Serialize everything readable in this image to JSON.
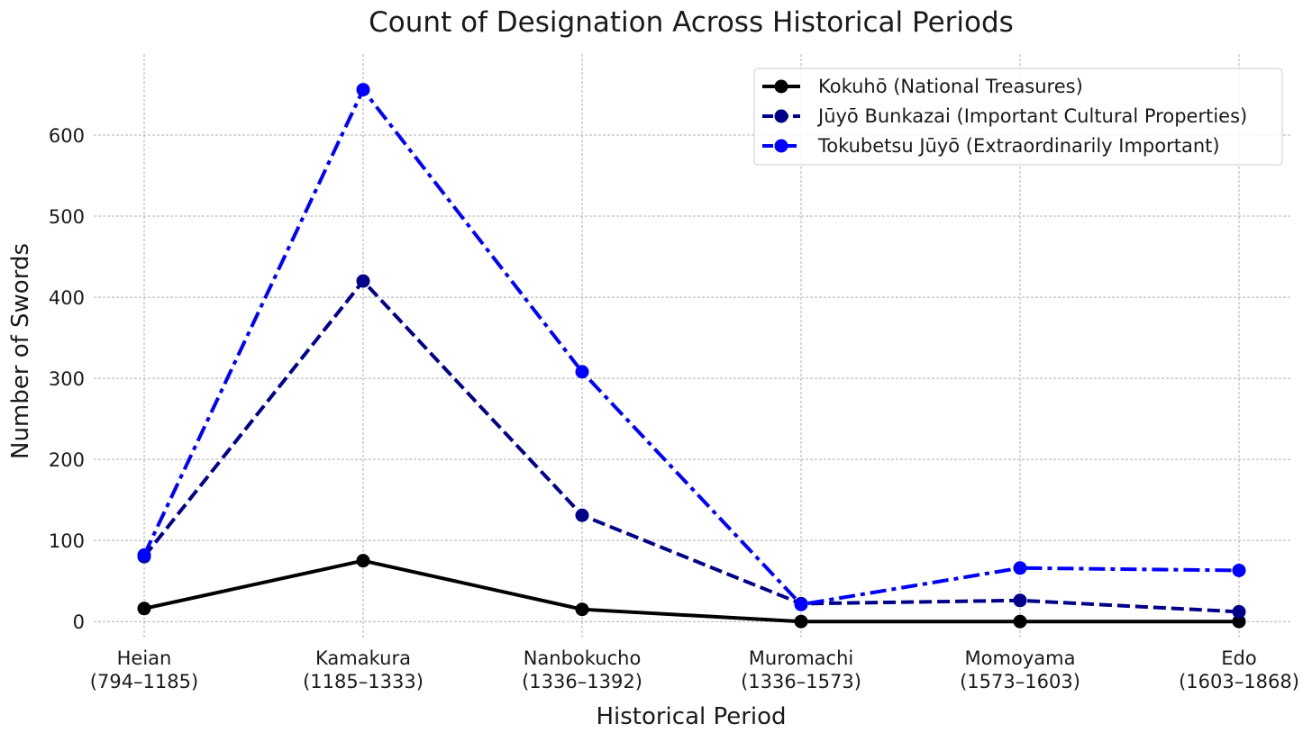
{
  "chart_data": {
    "type": "line",
    "title": "Count of Designation Across Historical Periods",
    "xlabel": "Historical Period",
    "ylabel": "Number of Swords",
    "categories": [
      {
        "name": "Heian",
        "range": "(794–1185)"
      },
      {
        "name": "Kamakura",
        "range": "(1185–1333)"
      },
      {
        "name": "Nanbokucho",
        "range": "(1336–1392)"
      },
      {
        "name": "Muromachi",
        "range": "(1336–1573)"
      },
      {
        "name": "Momoyama",
        "range": "(1573–1603)"
      },
      {
        "name": "Edo",
        "range": "(1603–1868)"
      }
    ],
    "ylim": [
      -22,
      700
    ],
    "yticks": [
      0,
      100,
      200,
      300,
      400,
      500,
      600
    ],
    "grid": true,
    "legend_position": "top-right",
    "series": [
      {
        "name": "Kokuhō (National Treasures)",
        "values": [
          16,
          75,
          15,
          0,
          0,
          0
        ],
        "color": "#000000",
        "line_style": "solid",
        "marker": "circle"
      },
      {
        "name": "Jūyō Bunkazai (Important Cultural Properties)",
        "values": [
          80,
          420,
          131,
          22,
          26,
          12
        ],
        "color": "#00008b",
        "line_style": "dashed",
        "marker": "circle"
      },
      {
        "name": "Tokubetsu Jūyō (Extraordinarily Important)",
        "values": [
          82,
          656,
          308,
          21,
          66,
          63
        ],
        "color": "#0000ff",
        "line_style": "dashdot",
        "marker": "circle"
      }
    ]
  }
}
